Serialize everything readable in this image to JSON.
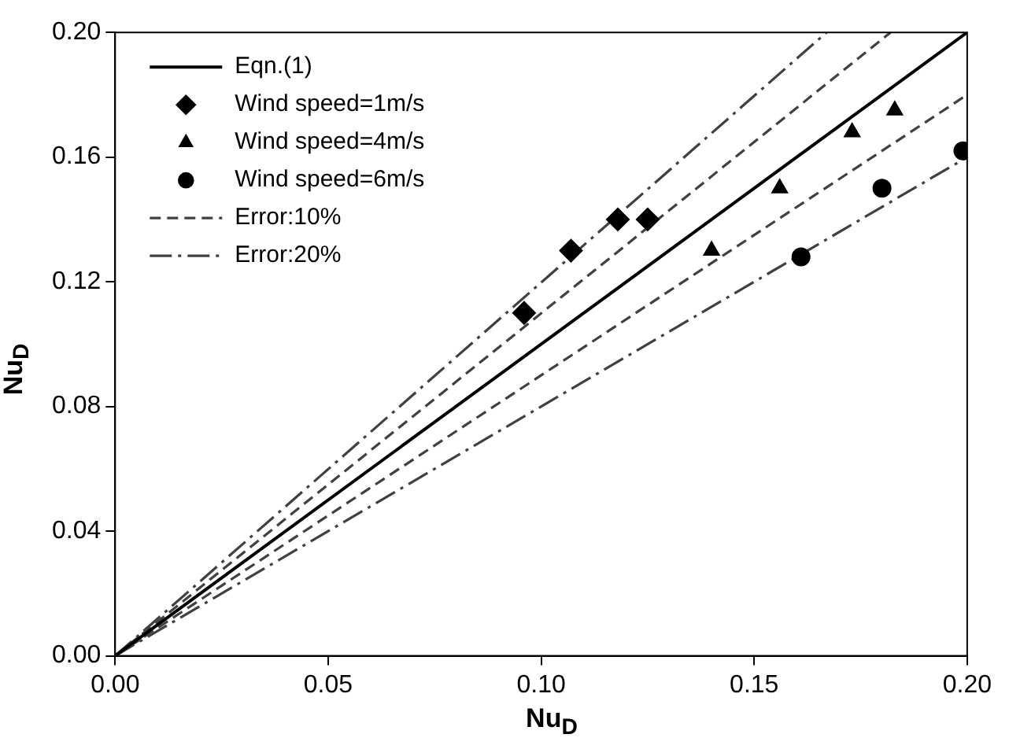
{
  "chart_data": {
    "type": "scatter",
    "xlabel": "Nu$_{D}$",
    "ylabel": "Nu$_{D}$",
    "series": [
      {
        "name": "Eqn.(1)",
        "type": "line",
        "color": "#000000",
        "line_style": "solid",
        "marker": "none",
        "x": [
          0,
          0.2
        ],
        "values": [
          0,
          0.2
        ]
      },
      {
        "name": "Wind speed=1m/s",
        "color": "#000000",
        "marker": "diamond",
        "x": [
          0.096,
          0.107,
          0.118,
          0.125
        ],
        "values": [
          0.11,
          0.13,
          0.14,
          0.14
        ]
      },
      {
        "name": "Wind speed=4m/s",
        "color": "#000000",
        "marker": "triangle",
        "x": [
          0.14,
          0.156,
          0.173,
          0.183
        ],
        "values": [
          0.13,
          0.15,
          0.168,
          0.175
        ]
      },
      {
        "name": "Wind speed=6m/s",
        "color": "#000000",
        "marker": "circle",
        "x": [
          0.161,
          0.18,
          0.199
        ],
        "values": [
          0.128,
          0.15,
          0.162
        ]
      },
      {
        "name": "Error:10%",
        "type": "line",
        "color": "#404040",
        "line_style": "dashed",
        "marker": "none",
        "x": [
          0,
          0.182
        ],
        "values": [
          0,
          0.2
        ]
      },
      {
        "type": "line",
        "color": "#404040",
        "line_style": "dashed",
        "marker": "none",
        "x": [
          0,
          0.2
        ],
        "values": [
          0,
          0.18
        ]
      },
      {
        "name": "Error:20%",
        "type": "line",
        "color": "#404040",
        "line_style": "dashdot",
        "marker": "none",
        "x": [
          0,
          0.167
        ],
        "values": [
          0,
          0.2
        ]
      },
      {
        "type": "line",
        "color": "#404040",
        "line_style": "dashdot",
        "marker": "none",
        "x": [
          0,
          0.2
        ],
        "values": [
          0,
          0.16
        ]
      }
    ],
    "xlim": [
      0,
      0.2
    ],
    "ylim": [
      0,
      0.2
    ],
    "xticks": [
      {
        "value": 0,
        "label": "0.00"
      },
      {
        "value": 0.05,
        "label": "0.05"
      },
      {
        "value": 0.1,
        "label": "0.10"
      },
      {
        "value": 0.15,
        "label": "0.15"
      },
      {
        "value": 0.2,
        "label": "0.20"
      }
    ],
    "yticks": [
      {
        "value": 0,
        "label": "0.00"
      },
      {
        "value": 0.04,
        "label": "0.04"
      },
      {
        "value": 0.08,
        "label": "0.08"
      },
      {
        "value": 0.12,
        "label": "0.12"
      },
      {
        "value": 0.16,
        "label": "0.16"
      },
      {
        "value": 0.2,
        "label": "0.20"
      }
    ],
    "grid": false,
    "legend": "top left"
  }
}
